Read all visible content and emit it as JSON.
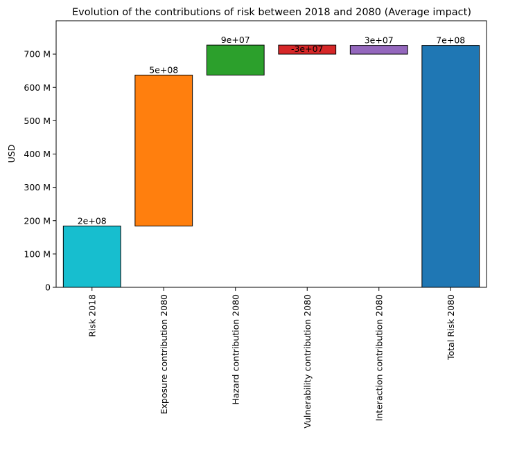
{
  "chart_data": {
    "type": "bar",
    "subtype": "waterfall",
    "title": "Evolution of the contributions of risk between 2018 and 2080 (Average impact)",
    "xlabel": "",
    "ylabel": "USD",
    "ylim": [
      0,
      800
    ],
    "yticks": [
      0,
      100,
      200,
      300,
      400,
      500,
      600,
      700
    ],
    "ytick_labels": [
      "0",
      "100 M",
      "200 M",
      "300 M",
      "400 M",
      "500 M",
      "600 M",
      "700 M"
    ],
    "categories": [
      "Risk 2018",
      "Exposure contribution 2080",
      "Hazard contribution 2080",
      "Vulnerability contribution 2080",
      "Interaction contribution 2080",
      "Total Risk 2080"
    ],
    "bottoms": [
      0,
      184,
      637,
      700,
      700,
      0
    ],
    "tops": [
      184,
      637,
      727,
      727,
      726,
      726
    ],
    "values": [
      184,
      453,
      90,
      -27,
      26,
      726
    ],
    "value_labels": [
      "2e+08",
      "5e+08",
      "9e+07",
      "-3e+07",
      "3e+07",
      "7e+08"
    ],
    "colors": [
      "#17becf",
      "#ff7f0e",
      "#2ca02c",
      "#d62728",
      "#9467bd",
      "#1f77b4"
    ],
    "grid": false
  }
}
